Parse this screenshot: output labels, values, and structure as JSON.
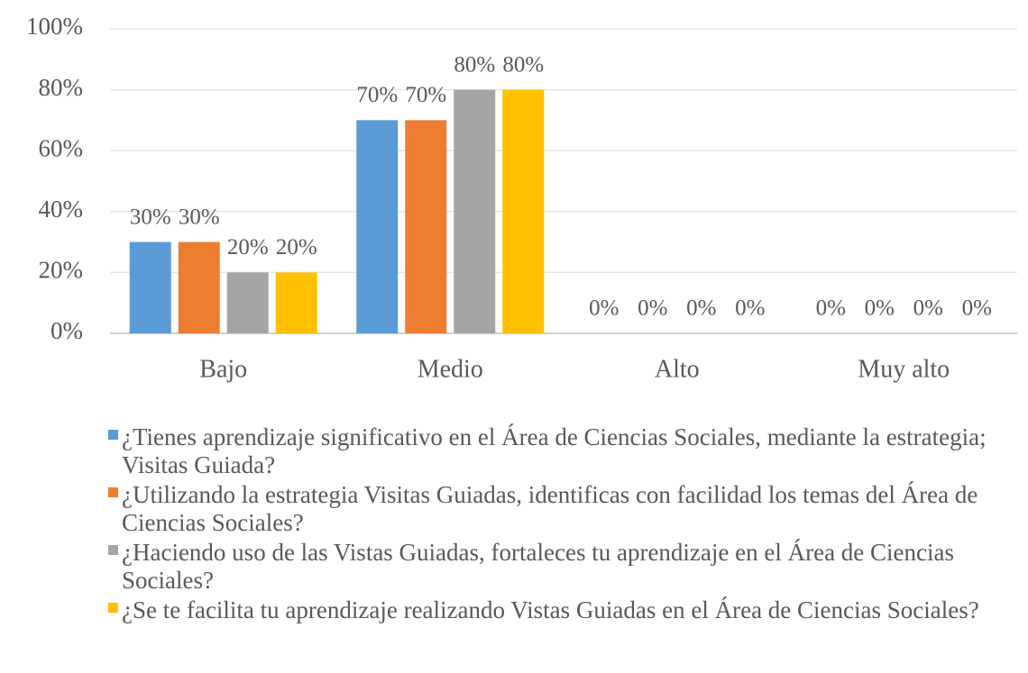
{
  "chart_data": {
    "type": "bar",
    "categories": [
      "Bajo",
      "Medio",
      "Alto",
      "Muy alto"
    ],
    "series": [
      {
        "name": "¿Tienes aprendizaje significativo en el Área de Ciencias Sociales, mediante la estrategia; Visitas Guiada?",
        "color": "#5b9bd5",
        "values": [
          30,
          70,
          0,
          0
        ],
        "value_labels": [
          "30%",
          "70%",
          "0%",
          "0%"
        ]
      },
      {
        "name": "¿Utilizando la estrategia Visitas Guiadas, identificas con facilidad los temas del Área de Ciencias Sociales?",
        "color": "#ed7d31",
        "values": [
          30,
          70,
          0,
          0
        ],
        "value_labels": [
          "30%",
          "70%",
          "0%",
          "0%"
        ]
      },
      {
        "name": "¿Haciendo uso de las Vistas Guiadas, fortaleces tu aprendizaje en el Área de Ciencias Sociales?",
        "color": "#a5a5a5",
        "values": [
          20,
          80,
          0,
          0
        ],
        "value_labels": [
          "20%",
          "80%",
          "0%",
          "0%"
        ]
      },
      {
        "name": "¿Se te facilita tu aprendizaje realizando Vistas Guiadas en el Área de Ciencias Sociales?",
        "color": "#ffc000",
        "values": [
          20,
          80,
          0,
          0
        ],
        "value_labels": [
          "20%",
          "80%",
          "0%",
          "0%"
        ]
      }
    ],
    "ylim": [
      0,
      100
    ],
    "yticks": [
      {
        "value": 0,
        "label": "0%"
      },
      {
        "value": 20,
        "label": "20%"
      },
      {
        "value": 40,
        "label": "40%"
      },
      {
        "value": 60,
        "label": "60%"
      },
      {
        "value": 80,
        "label": "80%"
      },
      {
        "value": 100,
        "label": "100%"
      }
    ],
    "grid": true,
    "legend": "bottom"
  }
}
